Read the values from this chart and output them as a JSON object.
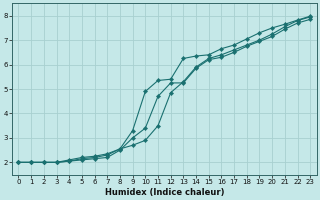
{
  "xlabel": "Humidex (Indice chaleur)",
  "background_color": "#c5e8e8",
  "grid_color": "#a8d0d0",
  "line_color": "#1a7070",
  "xlim": [
    -0.5,
    23.5
  ],
  "ylim": [
    1.5,
    8.5
  ],
  "xticks": [
    0,
    1,
    2,
    3,
    4,
    5,
    6,
    7,
    8,
    9,
    10,
    11,
    12,
    13,
    14,
    15,
    16,
    17,
    18,
    19,
    20,
    21,
    22,
    23
  ],
  "yticks": [
    2,
    3,
    4,
    5,
    6,
    7,
    8
  ],
  "line1_x": [
    0,
    1,
    2,
    3,
    4,
    5,
    6,
    7,
    8,
    9,
    10,
    11,
    12,
    13,
    14,
    15,
    16,
    17,
    18,
    19,
    20,
    21,
    22,
    23
  ],
  "line1_y": [
    2.0,
    2.0,
    2.0,
    2.0,
    2.05,
    2.1,
    2.15,
    2.2,
    2.5,
    3.0,
    3.4,
    4.7,
    5.25,
    5.25,
    5.85,
    6.2,
    6.3,
    6.5,
    6.75,
    6.95,
    7.15,
    7.45,
    7.7,
    7.85
  ],
  "line2_x": [
    0,
    1,
    2,
    3,
    4,
    5,
    6,
    7,
    8,
    9,
    10,
    11,
    12,
    13,
    14,
    15,
    16,
    17,
    18,
    19,
    20,
    21,
    22,
    23
  ],
  "line2_y": [
    2.0,
    2.0,
    2.0,
    2.0,
    2.1,
    2.2,
    2.25,
    2.35,
    2.55,
    2.7,
    2.9,
    3.5,
    4.85,
    5.3,
    5.9,
    6.25,
    6.4,
    6.6,
    6.8,
    7.0,
    7.25,
    7.55,
    7.8,
    7.95
  ],
  "line3_x": [
    0,
    1,
    2,
    3,
    4,
    5,
    6,
    7,
    8,
    9,
    10,
    11,
    12,
    13,
    14,
    15,
    16,
    17,
    18,
    19,
    20,
    21,
    22,
    23
  ],
  "line3_y": [
    2.0,
    2.0,
    2.0,
    2.0,
    2.05,
    2.15,
    2.2,
    2.3,
    2.55,
    3.3,
    4.9,
    5.35,
    5.4,
    6.25,
    6.35,
    6.4,
    6.65,
    6.8,
    7.05,
    7.3,
    7.5,
    7.65,
    7.82,
    7.98
  ]
}
